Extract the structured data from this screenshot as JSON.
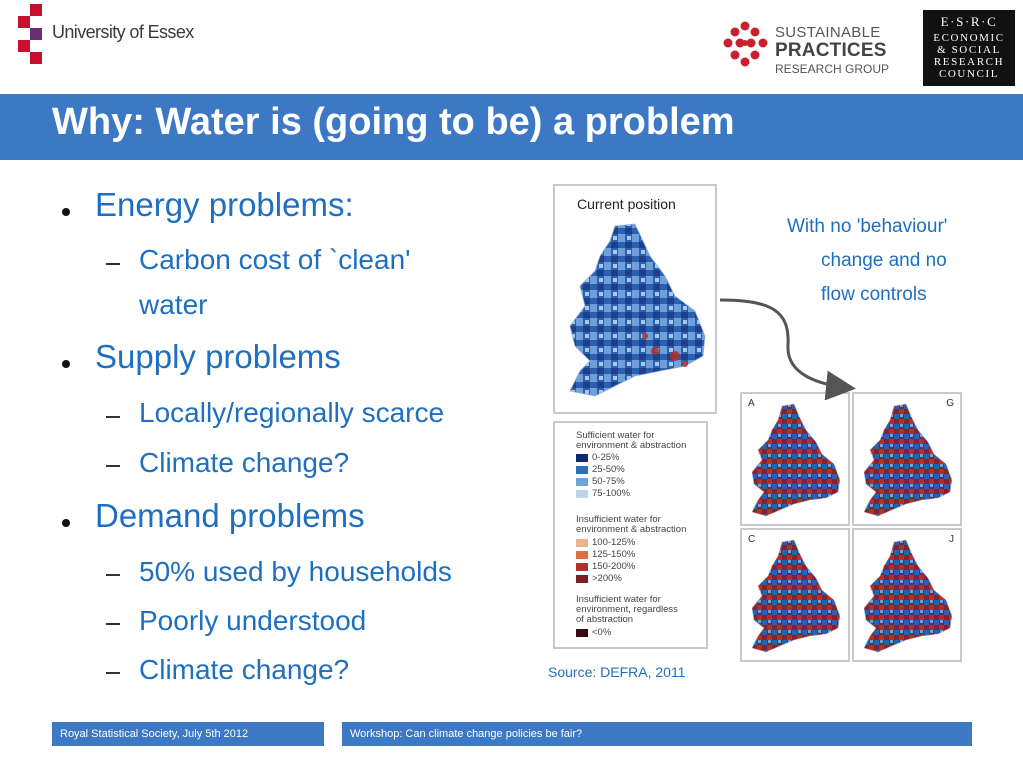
{
  "header": {
    "university": "University of Essex",
    "sprg": {
      "line1": "SUSTAINABLE",
      "line2": "PRACTICES",
      "line3": "RESEARCH GROUP"
    },
    "esrc": [
      "E·S·R·C",
      "ECONOMIC",
      "& SOCIAL",
      "RESEARCH",
      "COUNCIL"
    ]
  },
  "title": "Why: Water is (going to be) a problem",
  "bullets": [
    {
      "text": "Energy problems:",
      "subs": [
        "Carbon cost of `clean'",
        "water"
      ]
    },
    {
      "text": "Supply problems",
      "subs": [
        "Locally/regionally scarce",
        "Climate change?"
      ]
    },
    {
      "text": "Demand problems",
      "subs": [
        "50% used by households",
        "Poorly understood",
        "Climate change?"
      ]
    }
  ],
  "map": {
    "main_title": "Current position",
    "scenarios": [
      "A",
      "G",
      "C",
      "J"
    ],
    "legend": {
      "group1": [
        "Sufficient water for",
        "environment & abstraction"
      ],
      "items1": [
        {
          "label": "0-25%",
          "color": "#0d2a6e"
        },
        {
          "label": "25-50%",
          "color": "#2f6fc0"
        },
        {
          "label": "50-75%",
          "color": "#6fa6d8"
        },
        {
          "label": "75-100%",
          "color": "#b9d6ee"
        }
      ],
      "group2": [
        "Insufficient water for",
        "environment & abstraction"
      ],
      "items2": [
        {
          "label": "100-125%",
          "color": "#f2b08a"
        },
        {
          "label": "125-150%",
          "color": "#e07040"
        },
        {
          "label": "150-200%",
          "color": "#b0312a"
        },
        {
          "label": ">200%",
          "color": "#7a1f2a"
        }
      ],
      "group3": [
        "Insufficient water for",
        "environment, regardless",
        "of abstraction"
      ],
      "items3": [
        {
          "label": "<0%",
          "color": "#3a0a12"
        }
      ]
    }
  },
  "note": [
    "With no 'behaviour'",
    "change and no",
    "flow controls"
  ],
  "source": "Source: DEFRA, 2011",
  "footer": {
    "left": "Royal Statistical Society, July 5th 2012",
    "right": "Workshop: Can climate change policies be fair?"
  }
}
